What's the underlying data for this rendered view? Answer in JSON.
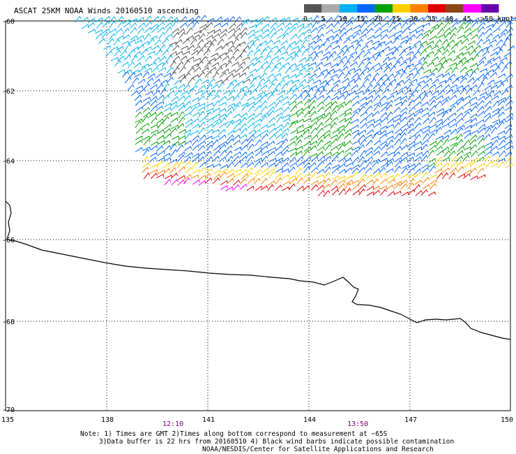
{
  "title": "ASCAT 25KM NOAA Winds 20160510 ascending",
  "legend": {
    "labels": [
      "0",
      "5",
      "10",
      "15",
      "20",
      "25",
      "30",
      "35",
      "40",
      "45",
      ">50 knots"
    ],
    "colors": [
      "#555555",
      "#aaaaaa",
      "#00b0f0",
      "#0066ff",
      "#00a000",
      "#ffd000",
      "#ff7f00",
      "#e00000",
      "#8b4513",
      "#ff00ff",
      "#6600aa"
    ]
  },
  "axes": {
    "lat_labels": [
      "-60",
      "-62",
      "-64",
      "-66",
      "-68",
      "-70"
    ],
    "lon_labels": [
      "135",
      "138",
      "141",
      "144",
      "147",
      "150"
    ]
  },
  "times": [
    "12:10",
    "13:50"
  ],
  "notes": [
    "Note: 1) Times are GMT 2)Times along bottom correspond to measurement at ~65S",
    "3)Data buffer is 22 hrs from 20160510 4) Black wind barbs indicate possible contamination",
    "NOAA/NESDIS/Center for Satellite Applications and Research"
  ],
  "colors": {
    "coastline": "#000000",
    "grid": "#000000",
    "time_label": "#800080"
  }
}
